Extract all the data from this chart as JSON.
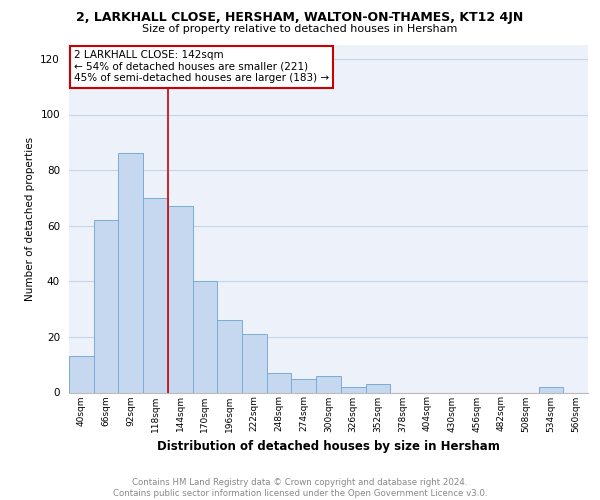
{
  "title_line1": "2, LARKHALL CLOSE, HERSHAM, WALTON-ON-THAMES, KT12 4JN",
  "title_line2": "Size of property relative to detached houses in Hersham",
  "xlabel": "Distribution of detached houses by size in Hersham",
  "ylabel": "Number of detached properties",
  "bin_labels": [
    "40sqm",
    "66sqm",
    "92sqm",
    "118sqm",
    "144sqm",
    "170sqm",
    "196sqm",
    "222sqm",
    "248sqm",
    "274sqm",
    "300sqm",
    "326sqm",
    "352sqm",
    "378sqm",
    "404sqm",
    "430sqm",
    "456sqm",
    "482sqm",
    "508sqm",
    "534sqm",
    "560sqm"
  ],
  "bar_values": [
    13,
    62,
    86,
    70,
    67,
    40,
    26,
    21,
    7,
    5,
    6,
    2,
    3,
    0,
    0,
    0,
    0,
    0,
    0,
    2,
    0
  ],
  "bar_color": "#c5d8f0",
  "bar_edge_color": "#7aadd4",
  "vline_color": "#cc0000",
  "vline_index": 4,
  "annotation_text": "2 LARKHALL CLOSE: 142sqm\n← 54% of detached houses are smaller (221)\n45% of semi-detached houses are larger (183) →",
  "annotation_box_color": "#ffffff",
  "annotation_box_edge": "#cc0000",
  "ylim": [
    0,
    125
  ],
  "yticks": [
    0,
    20,
    40,
    60,
    80,
    100,
    120
  ],
  "footer_text": "Contains HM Land Registry data © Crown copyright and database right 2024.\nContains public sector information licensed under the Open Government Licence v3.0.",
  "grid_color": "#c8d4e8",
  "background_color": "#edf2fa"
}
